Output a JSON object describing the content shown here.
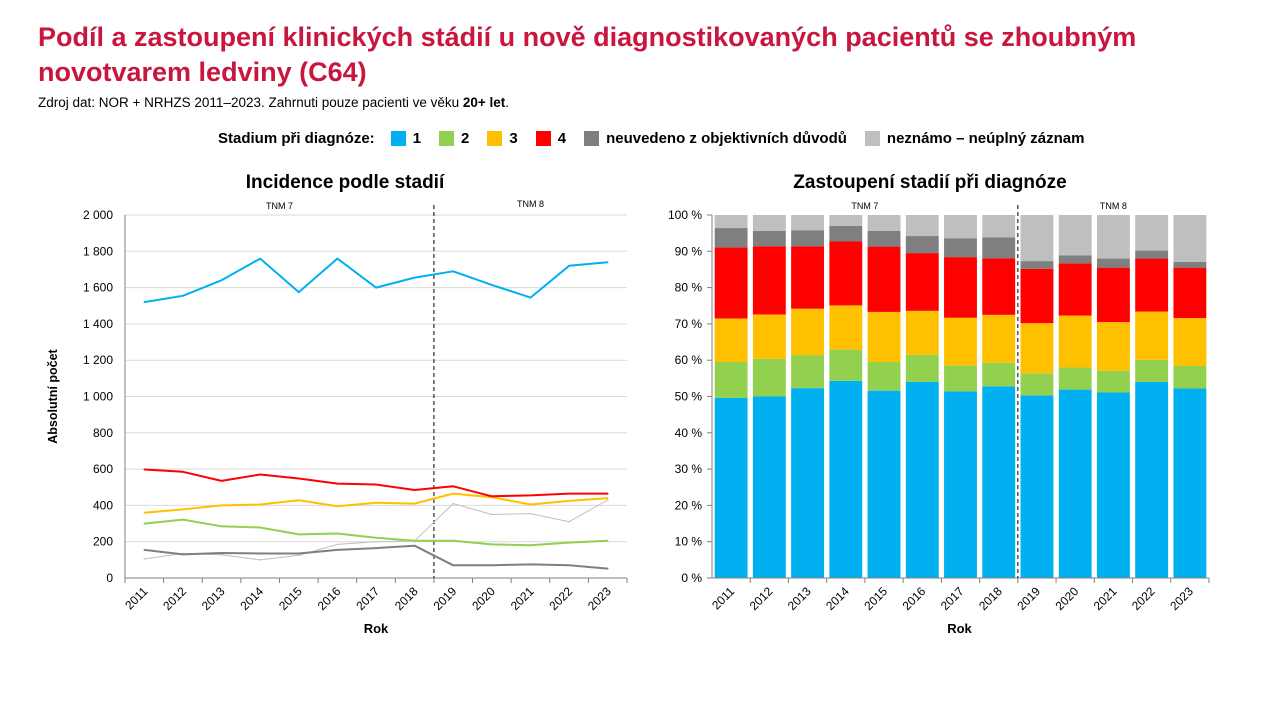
{
  "header": {
    "title": "Podíl a zastoupení klinických stádií u nově diagnostikovaných pacientů se zhoubným novotvarem ledviny (C64)",
    "subtitle_prefix": "Zdroj dat: NOR + NRHZS 2011–2023. Zahrnuti pouze pacienti ve věku ",
    "subtitle_bold": "20+ let",
    "subtitle_suffix": "."
  },
  "legend": {
    "title": "Stadium při diagnóze:",
    "items": [
      {
        "label": "1",
        "color": "#00b0f0"
      },
      {
        "label": "2",
        "color": "#92d050"
      },
      {
        "label": "3",
        "color": "#ffc000"
      },
      {
        "label": "4",
        "color": "#ff0000"
      },
      {
        "label": "neuvedeno z objektivních důvodů",
        "color": "#7f7f7f"
      },
      {
        "label": "neznámo – neúplný záznam",
        "color": "#bfbfbf"
      }
    ]
  },
  "chart_data": [
    {
      "type": "line",
      "title": "Incidence podle stadií",
      "xlabel": "Rok",
      "ylabel": "Absolutní počet",
      "ylim": [
        0,
        2000
      ],
      "yticks": [
        "0",
        "200",
        "400",
        "600",
        "800",
        "1 000",
        "1 200",
        "1 400",
        "1 600",
        "1 800",
        "2 000"
      ],
      "categories": [
        "2011",
        "2012",
        "2013",
        "2014",
        "2015",
        "2016",
        "2017",
        "2018",
        "2019",
        "2020",
        "2021",
        "2022",
        "2023"
      ],
      "annotations": {
        "divider_after": "2018",
        "left_label": "TNM 7",
        "right_label": "TNM 8"
      },
      "grid": "horizontal",
      "series": [
        {
          "name": "1",
          "color": "#00b0f0",
          "values": [
            1520,
            1555,
            1640,
            1760,
            1575,
            1760,
            1600,
            1655,
            1690,
            1615,
            1545,
            1720,
            1740
          ]
        },
        {
          "name": "2",
          "color": "#92d050",
          "values": [
            300,
            322,
            285,
            278,
            240,
            245,
            222,
            205,
            205,
            185,
            180,
            195,
            205
          ]
        },
        {
          "name": "3",
          "color": "#ffc000",
          "values": [
            360,
            378,
            400,
            405,
            428,
            395,
            415,
            410,
            465,
            445,
            405,
            425,
            440
          ]
        },
        {
          "name": "4",
          "color": "#ff0000",
          "values": [
            598,
            585,
            535,
            570,
            548,
            520,
            515,
            485,
            505,
            450,
            455,
            465,
            465
          ]
        },
        {
          "name": "neuvedeno z objektivních důvodů",
          "color": "#7f7f7f",
          "values": [
            155,
            130,
            138,
            135,
            135,
            155,
            165,
            178,
            70,
            70,
            75,
            70,
            52
          ]
        },
        {
          "name": "neznámo – neúplný záznam",
          "color": "#bfbfbf",
          "values": [
            105,
            135,
            128,
            100,
            125,
            185,
            200,
            205,
            410,
            350,
            355,
            310,
            430
          ]
        }
      ]
    },
    {
      "type": "bar",
      "stacked": true,
      "title": "Zastoupení stadií při diagnóze",
      "xlabel": "Rok",
      "ylim": [
        0,
        100
      ],
      "yticks": [
        "0 %",
        "10 %",
        "20 %",
        "30 %",
        "40 %",
        "50 %",
        "60 %",
        "70 %",
        "80 %",
        "90 %",
        "100 %"
      ],
      "categories": [
        "2011",
        "2012",
        "2013",
        "2014",
        "2015",
        "2016",
        "2017",
        "2018",
        "2019",
        "2020",
        "2021",
        "2022",
        "2023"
      ],
      "annotations": {
        "divider_after": "2018",
        "left_label": "TNM 7",
        "right_label": "TNM 8"
      },
      "series": [
        {
          "name": "1",
          "color": "#00b0f0",
          "values": [
            49.6,
            50.0,
            52.3,
            54.3,
            51.6,
            54.0,
            51.4,
            52.8,
            50.3,
            51.9,
            51.1,
            54.0,
            52.2
          ]
        },
        {
          "name": "2",
          "color": "#92d050",
          "values": [
            9.9,
            10.4,
            9.1,
            8.6,
            7.9,
            7.5,
            7.1,
            6.5,
            6.1,
            6.1,
            6.0,
            6.1,
            6.2
          ]
        },
        {
          "name": "3",
          "color": "#ffc000",
          "values": [
            12.0,
            12.2,
            12.8,
            12.2,
            13.8,
            12.1,
            13.2,
            13.2,
            13.8,
            14.3,
            13.4,
            13.3,
            13.2
          ]
        },
        {
          "name": "4",
          "color": "#ff0000",
          "values": [
            19.6,
            18.8,
            17.2,
            17.6,
            18.0,
            15.9,
            16.7,
            15.6,
            15.0,
            14.4,
            15.0,
            14.6,
            13.9
          ]
        },
        {
          "name": "neuvedeno z objektivních důvodů",
          "color": "#7f7f7f",
          "values": [
            5.3,
            4.2,
            4.4,
            4.3,
            4.3,
            4.7,
            5.2,
            5.7,
            2.1,
            2.2,
            2.5,
            2.2,
            1.6
          ]
        },
        {
          "name": "neznámo – neúplný záznam",
          "color": "#bfbfbf",
          "values": [
            3.6,
            4.4,
            4.2,
            3.0,
            4.4,
            5.8,
            6.4,
            6.2,
            12.7,
            11.1,
            12.0,
            9.8,
            12.9
          ]
        }
      ]
    }
  ]
}
